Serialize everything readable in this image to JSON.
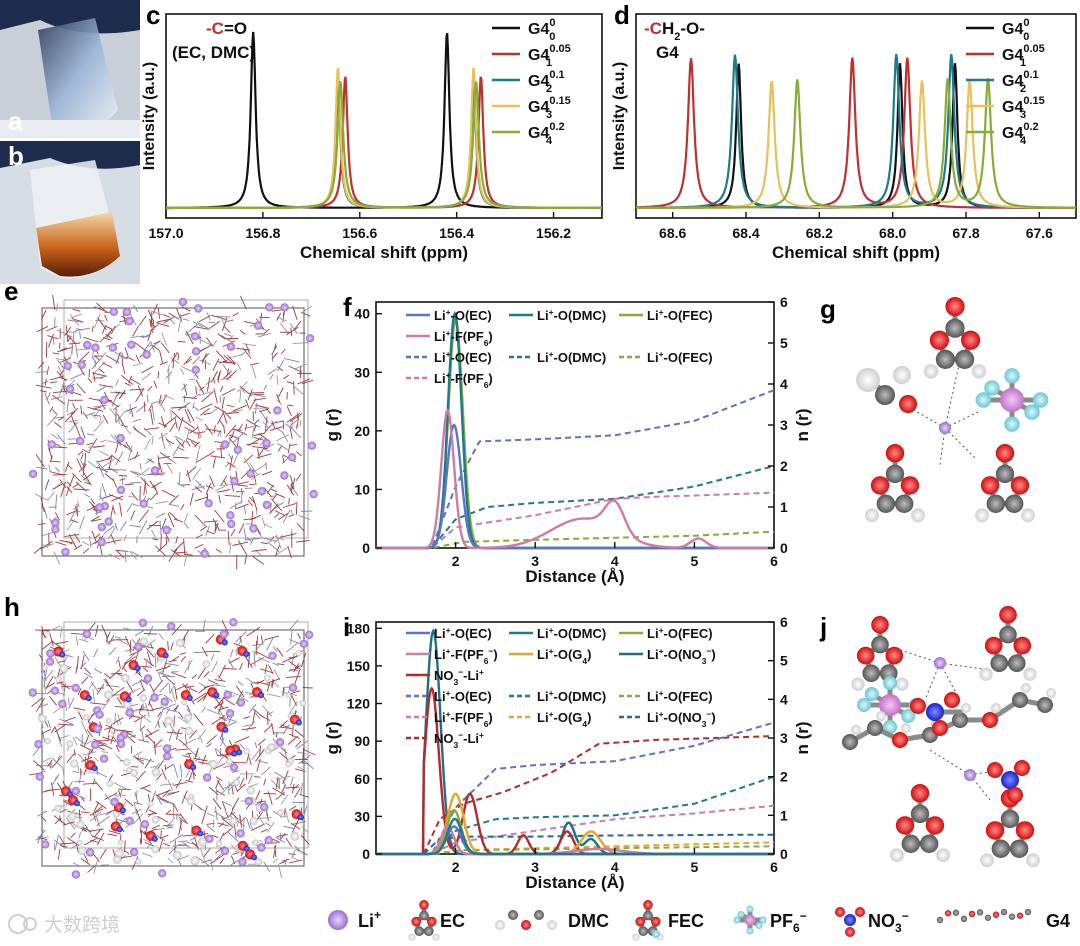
{
  "panel_letters": [
    "a",
    "b",
    "c",
    "d",
    "e",
    "f",
    "g",
    "h",
    "i",
    "j"
  ],
  "colors": {
    "black": "#111111",
    "red": "#c0302f",
    "teal": "#1f7a8c",
    "yellow": "#e8c15a",
    "green": "#86ad35",
    "blue": "#5b74c7",
    "pink": "#cf7ba8",
    "orange": "#e6a62c",
    "darkred": "#b32b2b",
    "dteal": "#1f6f8a"
  },
  "chart_data": [
    {
      "id": "c",
      "type": "line",
      "ylabel": "Intensity (a.u.)",
      "xlabel": "Chemical shift (ppm)",
      "xlim": [
        157.0,
        156.1
      ],
      "ylim": [
        0,
        1.1
      ],
      "xticks": [
        "157.0",
        "156.8",
        "156.6",
        "156.4",
        "156.2"
      ],
      "annotation": {
        "prefix": "-",
        "atom": "C",
        "suffix": "=O",
        "sub": "(EC, DMC)"
      },
      "series": [
        {
          "name": "G4",
          "sup": "0",
          "sub": "0",
          "color": "#111111",
          "peaks": [
            156.82,
            156.42
          ],
          "height": 1.0,
          "width": 0.006
        },
        {
          "name": "G4",
          "sup": "0.05",
          "sub": "1",
          "color": "#c0302f",
          "peaks": [
            156.63,
            156.35
          ],
          "height": 0.75,
          "width": 0.006
        },
        {
          "name": "G4",
          "sup": "0.1",
          "sub": "2",
          "color": "#1f7a8c",
          "peaks": [
            156.645,
            156.365
          ],
          "height": 0.7,
          "width": 0.006
        },
        {
          "name": "G4",
          "sup": "0.15",
          "sub": "3",
          "color": "#e8c15a",
          "peaks": [
            156.645,
            156.365
          ],
          "height": 0.8,
          "width": 0.006
        },
        {
          "name": "G4",
          "sup": "0.2",
          "sub": "4",
          "color": "#86ad35",
          "peaks": [
            156.64,
            156.36
          ],
          "height": 0.72,
          "width": 0.007
        }
      ]
    },
    {
      "id": "d",
      "type": "line",
      "ylabel": "Intensity (a.u.)",
      "xlabel": "Chemical shift (ppm)",
      "xlim": [
        68.7,
        67.5
      ],
      "ylim": [
        0,
        1.1
      ],
      "xticks": [
        "68.6",
        "68.4",
        "68.2",
        "68.0",
        "67.8",
        "67.6"
      ],
      "annotation": {
        "prefix": "-",
        "atom": "C",
        "suffix": "H2-O-",
        "sub": "G4"
      },
      "series": [
        {
          "name": "G4",
          "sup": "0",
          "sub": "0",
          "color": "#111111",
          "peaks": [
            68.42,
            67.98,
            67.83
          ],
          "height": 0.82,
          "width": 0.008
        },
        {
          "name": "G4",
          "sup": "0.05",
          "sub": "1",
          "color": "#c0302f",
          "peaks": [
            68.55,
            68.11,
            67.96
          ],
          "height": 0.85,
          "width": 0.01
        },
        {
          "name": "G4",
          "sup": "0.1",
          "sub": "2",
          "color": "#1f7a8c",
          "peaks": [
            68.43,
            67.99,
            67.84
          ],
          "height": 0.87,
          "width": 0.01
        },
        {
          "name": "G4",
          "sup": "0.15",
          "sub": "3",
          "color": "#e8c15a",
          "peaks": [
            68.33,
            67.92,
            67.79
          ],
          "height": 0.72,
          "width": 0.01
        },
        {
          "name": "G4",
          "sup": "0.2",
          "sub": "4",
          "color": "#86ad35",
          "peaks": [
            68.26,
            67.85,
            67.74
          ],
          "height": 0.73,
          "width": 0.01
        }
      ]
    },
    {
      "id": "f",
      "type": "line",
      "ylabel": "g (r)",
      "y2label": "n (r)",
      "xlabel": "Distance (Å)",
      "xlim": [
        1,
        6
      ],
      "ylim": [
        0,
        42
      ],
      "y2lim": [
        0,
        6
      ],
      "xticks": [
        2,
        3,
        4,
        5,
        6
      ],
      "yticks": [
        0,
        10,
        20,
        30,
        40
      ],
      "y2ticks": [
        0,
        1,
        2,
        3,
        4,
        5,
        6
      ],
      "legend_rows": [
        [
          {
            "t": "Li+-O(EC)",
            "c": "#5b74c7",
            "d": false
          },
          {
            "t": "Li+-O(DMC)",
            "c": "#1f7a8c",
            "d": false
          },
          {
            "t": "Li+-O(FEC)",
            "c": "#86ad35",
            "d": false
          }
        ],
        [
          {
            "t": "Li+-F(PF6)",
            "c": "#cf7ba8",
            "d": false
          }
        ],
        [
          {
            "t": "Li+-O(EC)",
            "c": "#5b74c7",
            "d": true
          },
          {
            "t": "Li+-O(DMC)",
            "c": "#1f7a8c",
            "d": true
          },
          {
            "t": "Li+-O(FEC)",
            "c": "#86ad35",
            "d": true
          }
        ],
        [
          {
            "t": "Li+-F(PF6)",
            "c": "#cf7ba8",
            "d": true
          }
        ]
      ],
      "rdf": [
        {
          "name": "Li+-O(FEC)",
          "color": "#86ad35",
          "peaks": [
            [
              2.0,
              39,
              0.09
            ]
          ]
        },
        {
          "name": "Li+-O(DMC)",
          "color": "#1f7a8c",
          "peaks": [
            [
              1.99,
              40,
              0.085
            ]
          ]
        },
        {
          "name": "Li+-O(EC)",
          "color": "#5b74c7",
          "peaks": [
            [
              1.98,
              21,
              0.09
            ]
          ]
        },
        {
          "name": "Li+-F(PF6)",
          "color": "#cf7ba8",
          "peaks": [
            [
              1.9,
              23.5,
              0.08
            ],
            [
              3.6,
              5,
              0.4
            ],
            [
              4.0,
              5,
              0.12
            ],
            [
              5.05,
              1.6,
              0.1
            ]
          ]
        }
      ],
      "cn": [
        {
          "name": "Li+-O(EC)",
          "color": "#5b74c7",
          "pts": [
            [
              1.7,
              0
            ],
            [
              2.0,
              1.5
            ],
            [
              2.3,
              2.6
            ],
            [
              3,
              2.65
            ],
            [
              4,
              2.75
            ],
            [
              5,
              3.1
            ],
            [
              6,
              3.85
            ]
          ]
        },
        {
          "name": "Li+-O(DMC)",
          "color": "#1f7a8c",
          "pts": [
            [
              1.7,
              0
            ],
            [
              2.0,
              0.7
            ],
            [
              2.4,
              1.0
            ],
            [
              3,
              1.1
            ],
            [
              4,
              1.2
            ],
            [
              5,
              1.5
            ],
            [
              6,
              2.0
            ]
          ]
        },
        {
          "name": "Li+-F(PF6)",
          "color": "#cf7ba8",
          "pts": [
            [
              1.7,
              0
            ],
            [
              2.0,
              0.5
            ],
            [
              2.5,
              0.65
            ],
            [
              3,
              0.8
            ],
            [
              3.5,
              1.0
            ],
            [
              4,
              1.2
            ],
            [
              4.5,
              1.25
            ],
            [
              5,
              1.28
            ],
            [
              6,
              1.35
            ]
          ]
        },
        {
          "name": "Li+-O(FEC)",
          "color": "#86ad35",
          "pts": [
            [
              1.7,
              0
            ],
            [
              2.1,
              0.15
            ],
            [
              3,
              0.2
            ],
            [
              4,
              0.25
            ],
            [
              5,
              0.3
            ],
            [
              6,
              0.4
            ]
          ]
        }
      ]
    },
    {
      "id": "i",
      "type": "line",
      "ylabel": "g (r)",
      "y2label": "n (r)",
      "xlabel": "Distance (Å)",
      "xlim": [
        1,
        6
      ],
      "ylim": [
        0,
        185
      ],
      "y2lim": [
        0,
        6
      ],
      "xticks": [
        2,
        3,
        4,
        5,
        6
      ],
      "yticks": [
        0,
        30,
        60,
        90,
        120,
        150,
        180
      ],
      "y2ticks": [
        0,
        1,
        2,
        3,
        4,
        5,
        6
      ],
      "legend_rows": [
        [
          {
            "t": "Li+-O(EC)",
            "c": "#5b74c7",
            "d": false
          },
          {
            "t": "Li+-O(DMC)",
            "c": "#1f7a8c",
            "d": false
          },
          {
            "t": "Li+-O(FEC)",
            "c": "#86ad35",
            "d": false
          }
        ],
        [
          {
            "t": "Li+-F(PF6-)",
            "c": "#cf7ba8",
            "d": false
          },
          {
            "t": "Li+-O(G4)",
            "c": "#e6a62c",
            "d": false
          },
          {
            "t": "Li+-O(NO3-)",
            "c": "#1f6f8a",
            "d": false
          }
        ],
        [
          {
            "t": "NO3--Li+",
            "c": "#b32b2b",
            "d": false
          }
        ],
        [
          {
            "t": "Li+-O(EC)",
            "c": "#5b74c7",
            "d": true
          },
          {
            "t": "Li+-O(DMC)",
            "c": "#1f7a8c",
            "d": true
          },
          {
            "t": "Li+-O(FEC)",
            "c": "#86ad35",
            "d": true
          }
        ],
        [
          {
            "t": "Li+-F(PF6)",
            "c": "#cf7ba8",
            "d": true
          },
          {
            "t": "Li+-O(G4)",
            "c": "#e6a62c",
            "d": true
          },
          {
            "t": "Li+-O(NO3-)",
            "c": "#1f6f8a",
            "d": true
          }
        ],
        [
          {
            "t": "NO3--Li+",
            "c": "#b32b2b",
            "d": true
          }
        ]
      ],
      "rdf": [
        {
          "name": "Li+-O(NO3-)",
          "color": "#1f6f8a",
          "peaks": [
            [
              1.72,
              178,
              0.09
            ],
            [
              3.42,
              25,
              0.08
            ],
            [
              3.7,
              12,
              0.08
            ]
          ]
        },
        {
          "name": "NO3--Li+",
          "color": "#b32b2b",
          "peaks": [
            [
              1.7,
              132,
              0.09
            ],
            [
              2.18,
              48,
              0.09
            ],
            [
              2.85,
              15,
              0.07
            ],
            [
              3.4,
              18,
              0.08
            ]
          ]
        },
        {
          "name": "Li+-O(G4)",
          "color": "#e6a62c",
          "peaks": [
            [
              2.0,
              48,
              0.1
            ],
            [
              3.7,
              18,
              0.12
            ]
          ]
        },
        {
          "name": "Li+-O(FEC)",
          "color": "#86ad35",
          "peaks": [
            [
              1.98,
              35,
              0.09
            ]
          ]
        },
        {
          "name": "Li+-F(PF6-)",
          "color": "#cf7ba8",
          "peaks": [
            [
              1.9,
              22,
              0.08
            ],
            [
              3.8,
              4,
              0.3
            ]
          ]
        },
        {
          "name": "Li+-O(EC)",
          "color": "#5b74c7",
          "peaks": [
            [
              1.98,
              22,
              0.09
            ]
          ]
        },
        {
          "name": "Li+-O(DMC)",
          "color": "#1f7a8c",
          "peaks": [
            [
              1.99,
              28,
              0.09
            ]
          ]
        }
      ],
      "cn": [
        {
          "name": "NO3--Li+",
          "color": "#b32b2b",
          "pts": [
            [
              1.6,
              0
            ],
            [
              1.8,
              0.9
            ],
            [
              2.1,
              1.3
            ],
            [
              2.6,
              1.6
            ],
            [
              3.2,
              2.1
            ],
            [
              3.8,
              2.85
            ],
            [
              4.5,
              2.95
            ],
            [
              6,
              3.05
            ]
          ]
        },
        {
          "name": "Li+-O(EC)",
          "color": "#5b74c7",
          "pts": [
            [
              1.7,
              0
            ],
            [
              2.0,
              1.2
            ],
            [
              2.5,
              2.2
            ],
            [
              3,
              2.3
            ],
            [
              4,
              2.4
            ],
            [
              5,
              2.8
            ],
            [
              6,
              3.4
            ]
          ]
        },
        {
          "name": "Li+-O(DMC)",
          "color": "#1f7a8c",
          "pts": [
            [
              1.7,
              0
            ],
            [
              2.0,
              0.6
            ],
            [
              2.5,
              0.9
            ],
            [
              3,
              0.95
            ],
            [
              4,
              1.0
            ],
            [
              5,
              1.3
            ],
            [
              6,
              2.0
            ]
          ]
        },
        {
          "name": "Li+-F(PF6)",
          "color": "#cf7ba8",
          "pts": [
            [
              1.7,
              0
            ],
            [
              2.0,
              0.3
            ],
            [
              3,
              0.6
            ],
            [
              4,
              0.9
            ],
            [
              5,
              1.05
            ],
            [
              6,
              1.25
            ]
          ]
        },
        {
          "name": "Li+-O(NO3-)",
          "color": "#1f6f8a",
          "pts": [
            [
              1.6,
              0
            ],
            [
              1.8,
              0.4
            ],
            [
              2.2,
              0.45
            ],
            [
              3,
              0.45
            ],
            [
              4,
              0.48
            ],
            [
              6,
              0.5
            ]
          ]
        },
        {
          "name": "Li+-O(G4)",
          "color": "#e6a62c",
          "pts": [
            [
              1.7,
              0
            ],
            [
              2.1,
              0.1
            ],
            [
              3,
              0.15
            ],
            [
              4,
              0.2
            ],
            [
              6,
              0.3
            ]
          ]
        },
        {
          "name": "Li+-O(FEC)",
          "color": "#86ad35",
          "pts": [
            [
              1.7,
              0
            ],
            [
              2.1,
              0.1
            ],
            [
              3,
              0.12
            ],
            [
              4,
              0.15
            ],
            [
              6,
              0.2
            ]
          ]
        }
      ]
    }
  ],
  "bottom_legend": [
    {
      "label": "Li+",
      "icon": "lithium-icon"
    },
    {
      "label": "EC",
      "icon": "ec-molecule-icon"
    },
    {
      "label": "DMC",
      "icon": "dmc-molecule-icon"
    },
    {
      "label": "FEC",
      "icon": "fec-molecule-icon"
    },
    {
      "label": "PF6-",
      "icon": "pf6-molecule-icon"
    },
    {
      "label": "NO3-",
      "icon": "no3-molecule-icon"
    },
    {
      "label": "G4",
      "icon": "g4-molecule-icon"
    }
  ],
  "watermark": "大数跨境"
}
